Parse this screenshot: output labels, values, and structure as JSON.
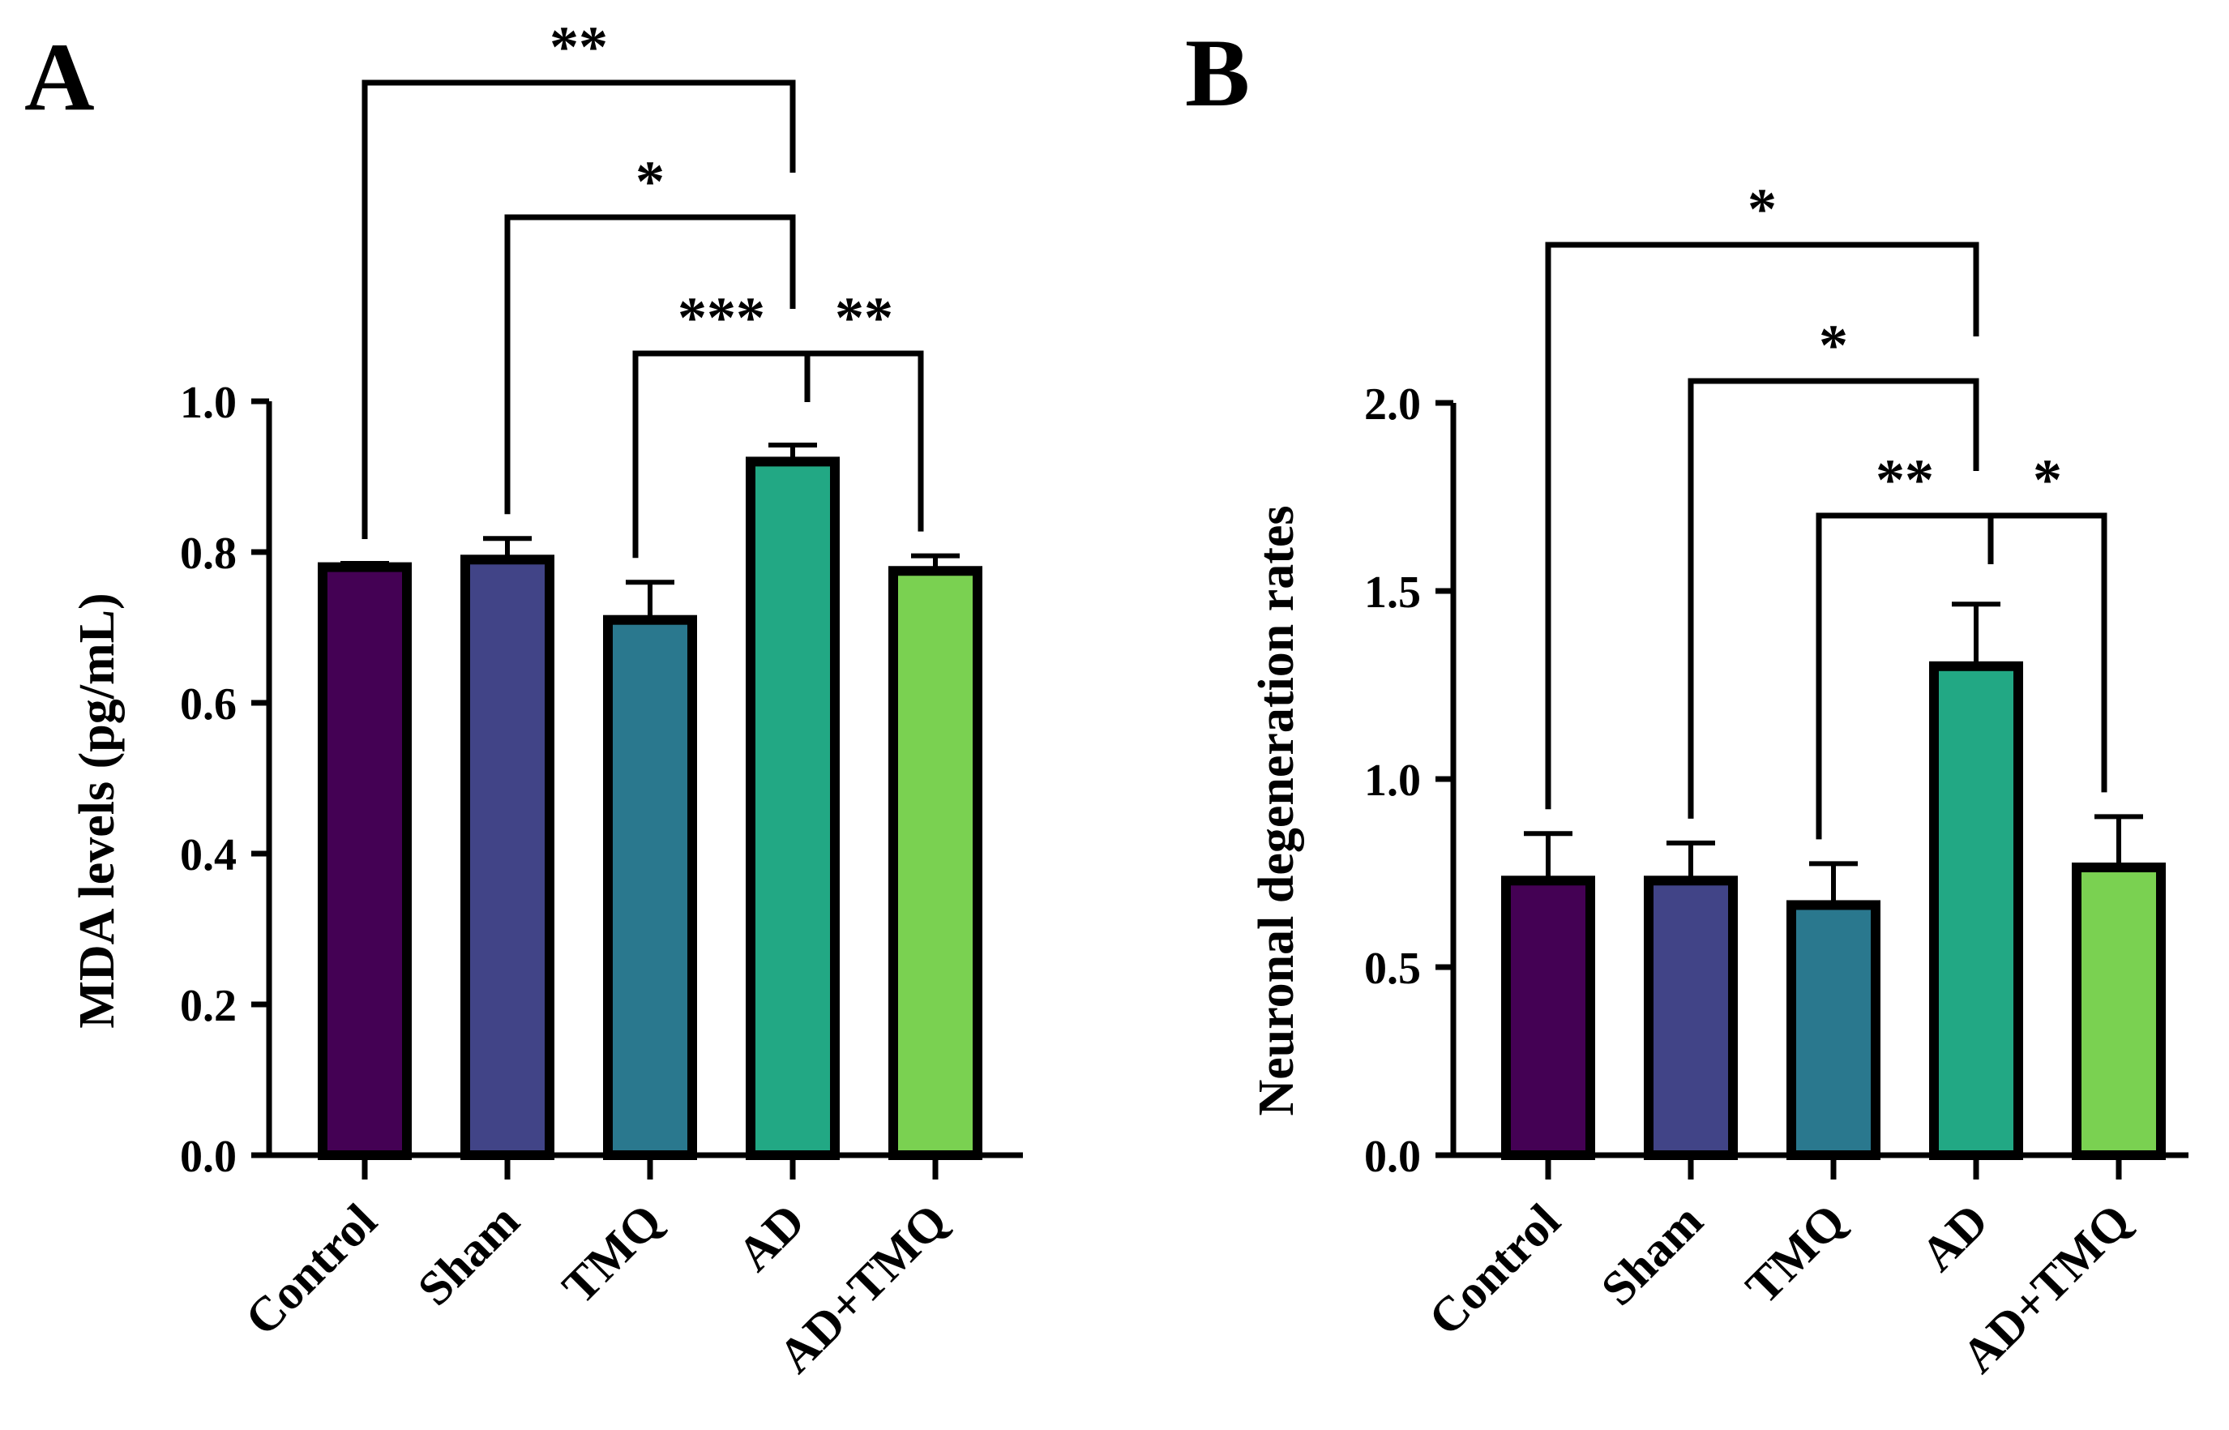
{
  "chart_data": [
    {
      "type": "bar",
      "panel_label": "A",
      "title": "",
      "xlabel": "",
      "ylabel": "MDA levels (pg/mL)",
      "ylim": [
        0,
        1.0
      ],
      "yticks": [
        0.0,
        0.2,
        0.4,
        0.6,
        0.8,
        1.0
      ],
      "ytick_labels": [
        "0.0",
        "0.2",
        "0.4",
        "0.6",
        "0.8",
        "1.0"
      ],
      "categories": [
        "Control",
        "Sham",
        "TMQ",
        "AD",
        "AD+TMQ"
      ],
      "values": [
        0.78,
        0.79,
        0.71,
        0.92,
        0.775
      ],
      "errors": [
        0.005,
        0.028,
        0.05,
        0.022,
        0.02
      ],
      "colors": [
        "#440154",
        "#414487",
        "#2a788e",
        "#22a884",
        "#7ad151"
      ],
      "significance": [
        {
          "from": "Control",
          "to": "AD",
          "label": "**"
        },
        {
          "from": "Sham",
          "to": "AD",
          "label": "*"
        },
        {
          "from": "TMQ",
          "to": "AD",
          "label": "***"
        },
        {
          "from": "AD",
          "to": "AD+TMQ",
          "label": "**"
        }
      ]
    },
    {
      "type": "bar",
      "panel_label": "B",
      "title": "",
      "xlabel": "",
      "ylabel": "Neuronal degeneration rates",
      "ylim": [
        0,
        2.0
      ],
      "yticks": [
        0.0,
        0.5,
        1.0,
        1.5,
        2.0
      ],
      "ytick_labels": [
        "0.0",
        "0.5",
        "1.0",
        "1.5",
        "2.0"
      ],
      "categories": [
        "Control",
        "Sham",
        "TMQ",
        "AD",
        "AD+TMQ"
      ],
      "values": [
        0.73,
        0.73,
        0.665,
        1.3,
        0.765
      ],
      "errors": [
        0.125,
        0.1,
        0.11,
        0.165,
        0.135
      ],
      "colors": [
        "#440154",
        "#414487",
        "#2a788e",
        "#22a884",
        "#7ad151"
      ],
      "significance": [
        {
          "from": "Control",
          "to": "AD",
          "label": "*"
        },
        {
          "from": "Sham",
          "to": "AD",
          "label": "*"
        },
        {
          "from": "TMQ",
          "to": "AD",
          "label": "**"
        },
        {
          "from": "AD",
          "to": "AD+TMQ",
          "label": "*"
        }
      ]
    }
  ]
}
